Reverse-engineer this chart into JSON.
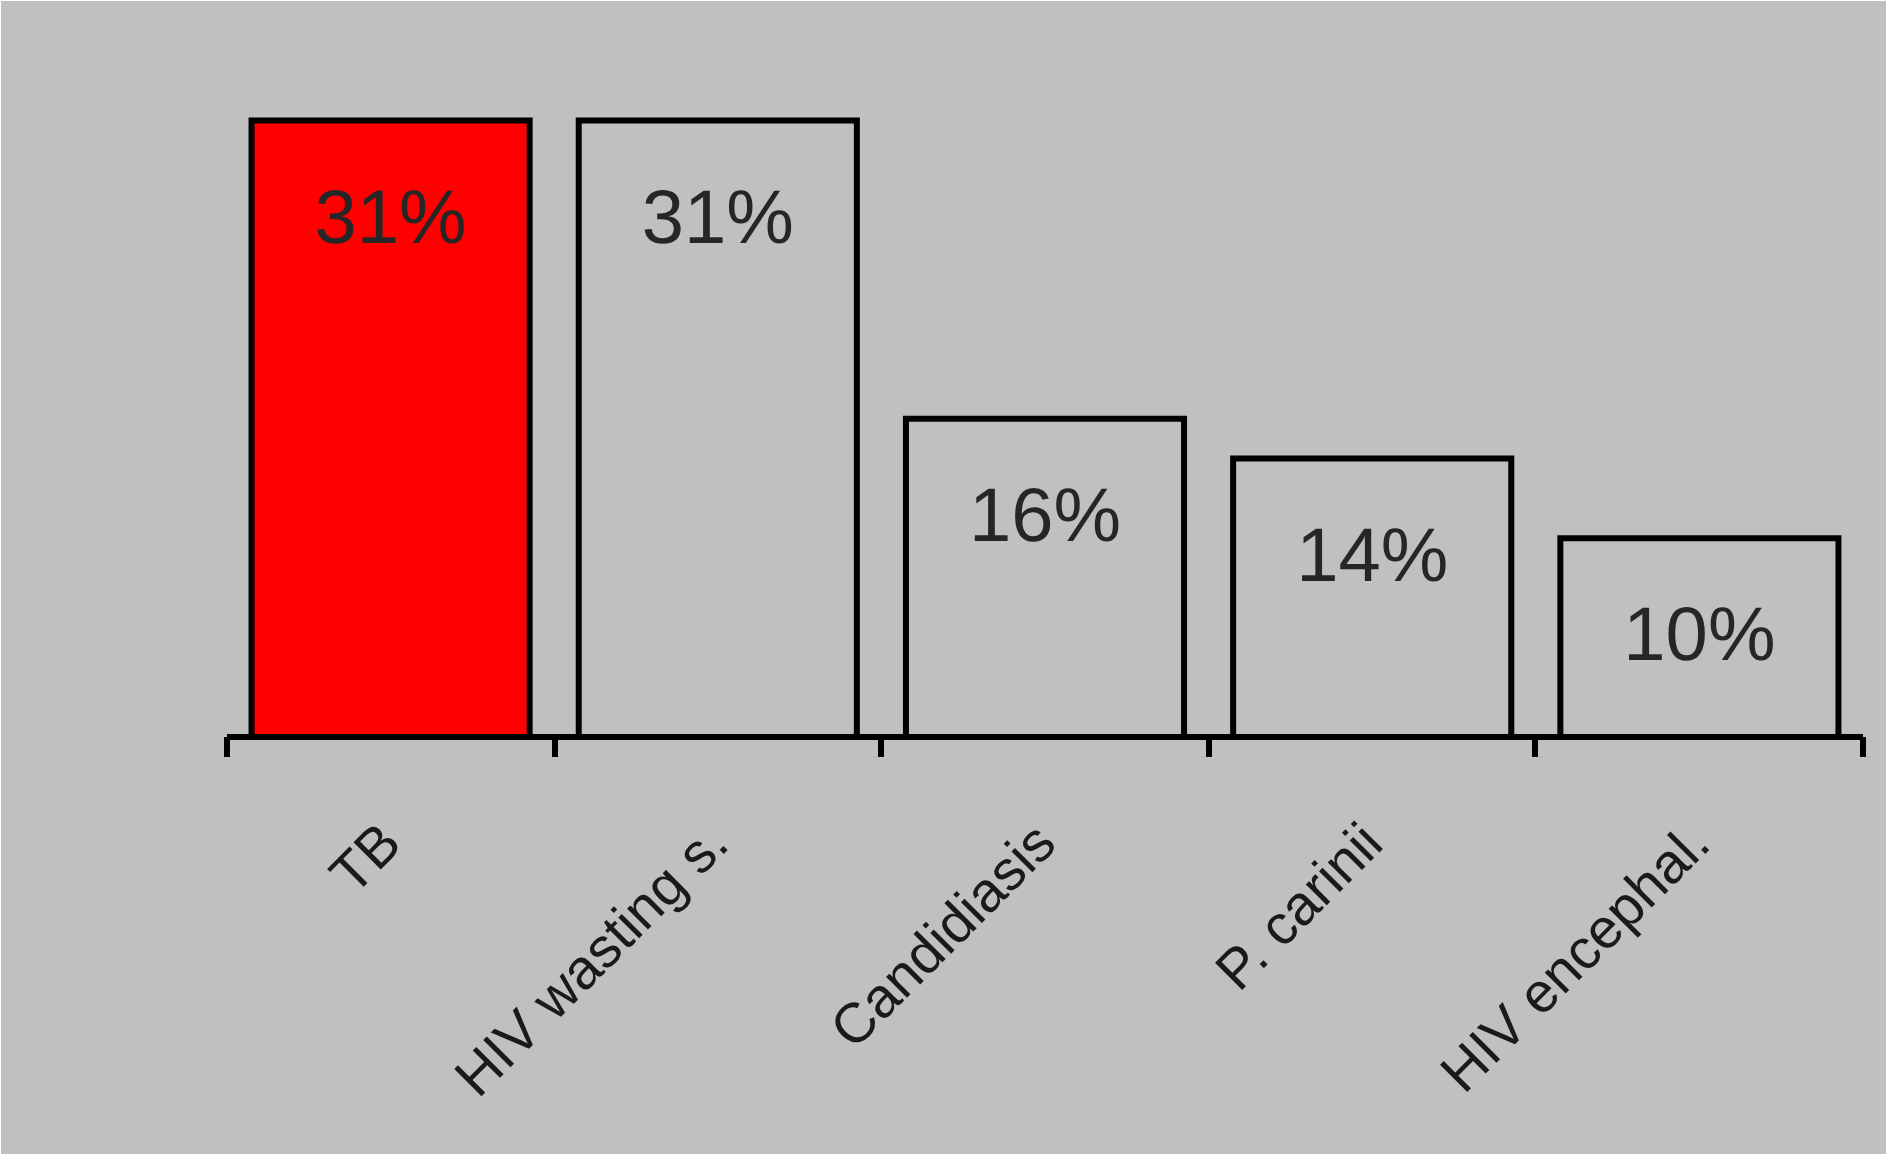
{
  "chart_data": {
    "type": "bar",
    "categories": [
      "TB",
      "HIV wasting s.",
      "Candidiasis",
      "P. carinii",
      "HIV encephal."
    ],
    "values": [
      31,
      31,
      16,
      14,
      10
    ],
    "colors": [
      "#ff0000",
      "#c0c0c0",
      "#c0c0c0",
      "#c0c0c0",
      "#c0c0c0"
    ],
    "value_labels": [
      "31%",
      "31%",
      "16%",
      "14%",
      "10%"
    ],
    "ylim": [
      0,
      35
    ],
    "tick_labels": "x"
  }
}
